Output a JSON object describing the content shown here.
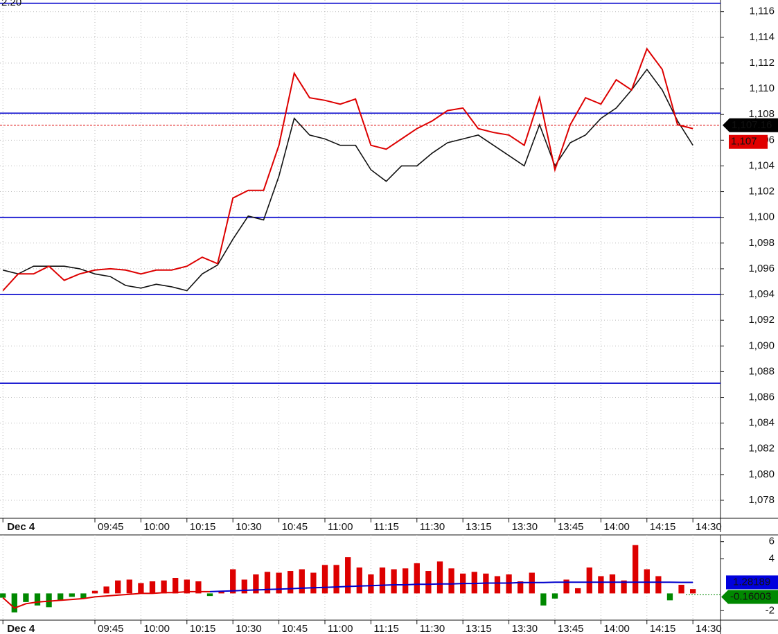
{
  "chart_data": [
    {
      "type": "line",
      "corner_label": "2.20",
      "xlim": [
        -0.76,
        187.2
      ],
      "xticks": [
        {
          "value": 0,
          "label": "Dec 4"
        },
        {
          "value": 24,
          "label": "09:45"
        },
        {
          "value": 36,
          "label": "10:00"
        },
        {
          "value": 48,
          "label": "10:15"
        },
        {
          "value": 60,
          "label": "10:30"
        },
        {
          "value": 72,
          "label": "10:45"
        },
        {
          "value": 84,
          "label": "11:00"
        },
        {
          "value": 96,
          "label": "11:15"
        },
        {
          "value": 108,
          "label": "11:30"
        },
        {
          "value": 120,
          "label": "13:15"
        },
        {
          "value": 132,
          "label": "13:30"
        },
        {
          "value": 144,
          "label": "13:45"
        },
        {
          "value": 156,
          "label": "14:00"
        },
        {
          "value": 168,
          "label": "14:15"
        },
        {
          "value": 180,
          "label": "14:30"
        }
      ],
      "ylim": [
        1076.6,
        1116.9
      ],
      "yticks": [
        {
          "value": 1078,
          "label": "1,078"
        },
        {
          "value": 1080,
          "label": "1,080"
        },
        {
          "value": 1082,
          "label": "1,082"
        },
        {
          "value": 1084,
          "label": "1,084"
        },
        {
          "value": 1086,
          "label": "1,086"
        },
        {
          "value": 1088,
          "label": "1,088"
        },
        {
          "value": 1090,
          "label": "1,090"
        },
        {
          "value": 1092,
          "label": "1,092"
        },
        {
          "value": 1094,
          "label": "1,094"
        },
        {
          "value": 1096,
          "label": "1,096"
        },
        {
          "value": 1098,
          "label": "1,098"
        },
        {
          "value": 1100,
          "label": "1,100"
        },
        {
          "value": 1102,
          "label": "1,102"
        },
        {
          "value": 1104,
          "label": "1,104"
        },
        {
          "value": 1106,
          "label": "1,106"
        },
        {
          "value": 1108,
          "label": "1,108"
        },
        {
          "value": 1110,
          "label": "1,110"
        },
        {
          "value": 1112,
          "label": "1,112"
        },
        {
          "value": 1114,
          "label": "1,114"
        },
        {
          "value": 1116,
          "label": "1,116"
        }
      ],
      "grid": true,
      "levels": [
        1116.65,
        1108.1,
        1100.0,
        1094.0,
        1087.1
      ],
      "level_color": "#0000cc",
      "last_price": {
        "value": 1107.16,
        "label": "1,107.16"
      },
      "avg_price": {
        "value": 1107,
        "label": "1,107"
      },
      "x": [
        0,
        4,
        8,
        12,
        16,
        20,
        24,
        28,
        32,
        36,
        40,
        44,
        48,
        52,
        56,
        60,
        64,
        68,
        72,
        76,
        80,
        84,
        88,
        92,
        96,
        100,
        104,
        108,
        112,
        116,
        120,
        124,
        128,
        132,
        136,
        140,
        144,
        148,
        152,
        156,
        160,
        164,
        168,
        172,
        176,
        180
      ],
      "series": [
        {
          "color": "#111111",
          "values": [
            1095.9,
            1095.6,
            1096.2,
            1096.2,
            1096.2,
            1096.0,
            1095.6,
            1095.4,
            1094.7,
            1094.5,
            1094.8,
            1094.6,
            1094.3,
            1095.6,
            1096.3,
            1098.3,
            1100.1,
            1099.8,
            1103.2,
            1107.7,
            1106.4,
            1106.1,
            1105.6,
            1105.6,
            1103.7,
            1102.8,
            1104.0,
            1104.0,
            1105.0,
            1105.8,
            1106.1,
            1106.4,
            1105.6,
            1104.8,
            1104.0,
            1107.2,
            1104.0,
            1105.8,
            1106.4,
            1107.7,
            1108.5,
            1109.9,
            1111.5,
            1109.9,
            1107.5,
            1105.6
          ]
        },
        {
          "color": "#dd0000",
          "values": [
            1094.3,
            1095.6,
            1095.6,
            1096.2,
            1095.1,
            1095.6,
            1095.9,
            1096.0,
            1095.9,
            1095.6,
            1095.9,
            1095.9,
            1096.2,
            1096.9,
            1096.4,
            1101.5,
            1102.1,
            1102.1,
            1105.6,
            1111.2,
            1109.3,
            1109.1,
            1108.8,
            1109.2,
            1105.6,
            1105.3,
            1106.1,
            1106.9,
            1107.5,
            1108.3,
            1108.5,
            1106.9,
            1106.6,
            1106.4,
            1105.6,
            1109.3,
            1103.7,
            1107.2,
            1109.3,
            1108.8,
            1110.7,
            1109.9,
            1113.1,
            1111.5,
            1107.2,
            1106.9
          ]
        }
      ]
    },
    {
      "type": "histogram-lines",
      "xlim": [
        -0.76,
        187.2
      ],
      "xticks": [
        {
          "value": 0,
          "label": "Dec 4"
        },
        {
          "value": 24,
          "label": "09:45"
        },
        {
          "value": 36,
          "label": "10:00"
        },
        {
          "value": 48,
          "label": "10:15"
        },
        {
          "value": 60,
          "label": "10:30"
        },
        {
          "value": 72,
          "label": "10:45"
        },
        {
          "value": 84,
          "label": "11:00"
        },
        {
          "value": 96,
          "label": "11:15"
        },
        {
          "value": 108,
          "label": "11:30"
        },
        {
          "value": 120,
          "label": "13:15"
        },
        {
          "value": 132,
          "label": "13:30"
        },
        {
          "value": 144,
          "label": "13:45"
        },
        {
          "value": 156,
          "label": "14:00"
        },
        {
          "value": 168,
          "label": "14:15"
        },
        {
          "value": 180,
          "label": "14:30"
        }
      ],
      "ylim": [
        -3.1,
        6.78
      ],
      "yticks": [
        -2,
        4,
        6
      ],
      "positive_color": "#dd0000",
      "negative_color": "#008800",
      "x": [
        0,
        3,
        6,
        9,
        12,
        15,
        18,
        21,
        24,
        27,
        30,
        33,
        36,
        39,
        42,
        45,
        48,
        51,
        54,
        57,
        60,
        63,
        66,
        69,
        72,
        75,
        78,
        81,
        84,
        87,
        90,
        93,
        96,
        99,
        102,
        105,
        108,
        111,
        114,
        117,
        120,
        123,
        126,
        129,
        132,
        135,
        138,
        141,
        144,
        147,
        150,
        153,
        156,
        159,
        162,
        165,
        168,
        171,
        174,
        177,
        180
      ],
      "values": [
        -0.5,
        -2.2,
        -1.0,
        -1.4,
        -1.6,
        -0.8,
        -0.4,
        -0.6,
        0.3,
        0.8,
        1.5,
        1.6,
        1.2,
        1.4,
        1.5,
        1.8,
        1.6,
        1.4,
        -0.3,
        0.3,
        2.8,
        1.6,
        2.2,
        2.5,
        2.4,
        2.6,
        2.8,
        2.4,
        3.3,
        3.3,
        4.2,
        3.0,
        2.2,
        3.0,
        2.8,
        2.9,
        3.5,
        2.6,
        3.7,
        2.9,
        2.3,
        2.5,
        2.3,
        2.0,
        2.2,
        1.4,
        2.4,
        -1.4,
        -0.6,
        1.6,
        0.6,
        3.0,
        2.0,
        2.2,
        1.5,
        5.6,
        2.8,
        2.0,
        -0.8,
        1.0,
        0.5
      ],
      "series": [
        {
          "color": "#dd0000",
          "values": [
            -0.5,
            -1.7,
            -1.2,
            -1.0,
            -0.9,
            -0.8,
            -0.7,
            -0.6,
            -0.4,
            -0.3,
            -0.2,
            -0.1,
            0.0,
            0.0,
            0.1,
            0.1,
            0.2,
            0.2,
            0.2,
            null,
            null,
            null,
            null,
            null,
            null,
            null,
            null,
            null,
            null,
            null,
            null,
            null,
            null,
            null,
            null,
            null,
            null,
            null,
            null,
            null,
            null,
            null,
            null,
            null,
            null,
            null,
            null,
            null,
            null,
            null,
            null,
            null,
            null,
            null,
            null,
            null,
            null,
            null,
            null,
            null,
            null
          ]
        },
        {
          "color": "#0000cc",
          "values": [
            null,
            null,
            null,
            null,
            null,
            null,
            null,
            null,
            null,
            null,
            null,
            null,
            null,
            null,
            null,
            null,
            null,
            null,
            0.2,
            0.25,
            0.3,
            0.35,
            0.4,
            0.45,
            0.5,
            0.55,
            0.6,
            0.65,
            0.7,
            0.75,
            0.8,
            0.85,
            0.9,
            0.95,
            1.0,
            1.0,
            1.05,
            1.05,
            1.1,
            1.1,
            1.15,
            1.15,
            1.2,
            1.2,
            1.2,
            1.25,
            1.25,
            1.25,
            1.3,
            1.3,
            1.3,
            1.3,
            1.3,
            1.3,
            1.3,
            1.3,
            1.3,
            1.3,
            1.3,
            1.28,
            1.28
          ]
        }
      ],
      "last_values": [
        1.28189,
        -0.16003
      ]
    }
  ]
}
